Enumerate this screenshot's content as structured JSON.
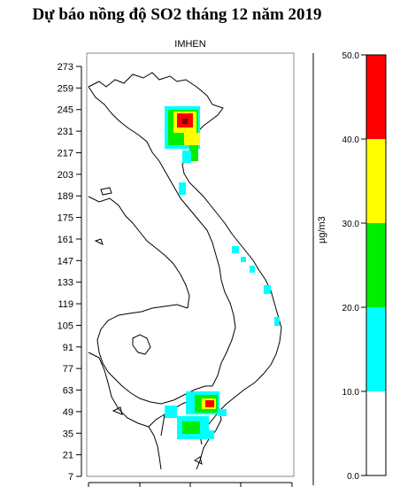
{
  "title": "Dự báo nồng độ SO2 tháng 12 năm 2019",
  "subtitle": "IMHEN",
  "map": {
    "y_ticks": [
      "273",
      "259",
      "245",
      "231",
      "217",
      "203",
      "189",
      "175",
      "161",
      "147",
      "133",
      "119",
      "105",
      "91",
      "77",
      "63",
      "49",
      "35",
      "21",
      "7"
    ]
  },
  "legend": {
    "unit": "µg/m3",
    "ticks": [
      "50.0",
      "40.0",
      "30.0",
      "20.0",
      "10.0",
      "0.0"
    ],
    "bands": [
      {
        "from": 40,
        "to": 50,
        "color": "#ff0000"
      },
      {
        "from": 30,
        "to": 40,
        "color": "#ffff00"
      },
      {
        "from": 20,
        "to": 30,
        "color": "#00ee00"
      },
      {
        "from": 10,
        "to": 20,
        "color": "#00ffff"
      },
      {
        "from": 0,
        "to": 10,
        "color": "#ffffff"
      }
    ]
  }
}
